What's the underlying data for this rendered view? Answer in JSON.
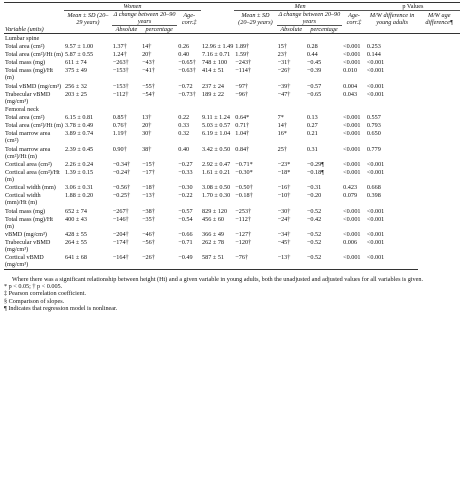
{
  "header": {
    "women": "Women",
    "men": "Men",
    "p_values": "p Values",
    "women_columns": [
      "Mean ± SD (20–29 years)",
      "Δ change between 20–90 years",
      "Age-corr.‡"
    ],
    "men_columns": [
      "Mean ± SD (20–29 years)",
      "Δ change between 20–90 years",
      "Age-corr.‡"
    ],
    "p_columns": [
      "M/W difference in young adults",
      "M/W age difference¶"
    ],
    "variable": "Variable (units)",
    "women_sub": [
      "Absolute",
      "percentage"
    ],
    "men_sub": [
      "Absolute",
      "percentage"
    ]
  },
  "sections": [
    {
      "title": "Lumbar spine",
      "rows": [
        [
          "Total area (cm²)",
          "9.57 ± 1.00",
          "1.37†",
          "14†",
          "0.26",
          "12.96 ± 1.49",
          "1.89†",
          "15†",
          "0.28",
          "<0.001",
          "0.253"
        ],
        [
          "Total area (cm²)/Ht (m)",
          "5.87 ± 0.55",
          "1.24†",
          "20†",
          "0.40",
          "7.16 ± 0.71",
          "1.59†",
          "23†",
          "0.44",
          "<0.001",
          "0.144"
        ],
        [
          "Total mass (mg)",
          "611 ± 74",
          "−263†",
          "−43†",
          "−0.65†",
          "748 ± 100",
          "−243†",
          "−31†",
          "−0.45",
          "<0.001",
          "<0.001"
        ],
        [
          "Total mass (mg)/Ht (m)",
          "375 ± 49",
          "−153†",
          "−41†",
          "−0.63†",
          "414 ± 51",
          "−114†",
          "−26†",
          "−0.39",
          "0.010",
          "<0.001"
        ],
        [
          "Total vBMD (mg/cm³)",
          "256 ± 32",
          "−153†",
          "−55†",
          "−0.72",
          "237 ± 24",
          "−97†",
          "−39†",
          "−0.57",
          "0.004",
          "<0.001"
        ],
        [
          "Trabecular vBMD (mg/cm³)",
          "203 ± 25",
          "−112†",
          "−54†",
          "−0.73†",
          "189 ± 22",
          "−96†",
          "−47†",
          "−0.65",
          "0.043",
          "<0.001"
        ]
      ]
    },
    {
      "title": "Femoral neck",
      "rows": [
        [
          "Total area (cm²)",
          "6.15 ± 0.81",
          "0.85†",
          "13†",
          "0.22",
          "9.11 ± 1.24",
          "0.64*",
          "7*",
          "0.13",
          "<0.001",
          "0.557"
        ],
        [
          "Total area (cm²)/Ht (m)",
          "3.78 ± 0.49",
          "0.76†",
          "20†",
          "0.33",
          "5.03 ± 0.57",
          "0.71†",
          "14†",
          "0.27",
          "<0.001",
          "0.793"
        ],
        [
          "Total marrow area (cm²)",
          "3.89 ± 0.74",
          "1.19†",
          "30†",
          "0.32",
          "6.19 ± 1.04",
          "1.04†",
          "16*",
          "0.21",
          "<0.001",
          "0.650"
        ],
        [
          "Total marrow area (cm²)/Ht (m)",
          "2.39 ± 0.45",
          "0.90†",
          "38†",
          "0.40",
          "3.42 ± 0.50",
          "0.84†",
          "25†",
          "0.31",
          "<0.001",
          "0.779"
        ],
        [
          "Cortical area (cm²)",
          "2.26 ± 0.24",
          "−0.34†",
          "−15†",
          "−0.27",
          "2.92 ± 0.47",
          "−0.71*",
          "−23*",
          "−0.29¶",
          "<0.001",
          "<0.001"
        ],
        [
          "Cortical area (cm²)/Ht (m)",
          "1.39 ± 0.15",
          "−0.24†",
          "−17†",
          "−0.33",
          "1.61 ± 0.21",
          "−0.30*",
          "−18*",
          "−0.18¶",
          "<0.001",
          "<0.001"
        ],
        [
          "Cortical width (mm)",
          "3.06 ± 0.31",
          "−0.56†",
          "−18†",
          "−0.30",
          "3.08 ± 0.50",
          "−0.50†",
          "−16†",
          "−0.31",
          "0.423",
          "0.668"
        ],
        [
          "Cortical width (mm)/Ht (m)",
          "1.88 ± 0.20",
          "−0.25†",
          "−13†",
          "−0.22",
          "1.70 ± 0.30",
          "−0.18†",
          "−10†",
          "−0.20",
          "0.079",
          "0.398"
        ],
        [
          "Total mass (mg)",
          "652 ± 74",
          "−267†",
          "−38†",
          "−0.57",
          "829 ± 120",
          "−253†",
          "−30†",
          "−0.52",
          "<0.001",
          "<0.001"
        ],
        [
          "Total mass (mg)/Ht (m)",
          "400 ± 43",
          "−146†",
          "−35†",
          "−0.54",
          "456 ± 60",
          "−112†",
          "−24†",
          "−0.42",
          "<0.001",
          "<0.001"
        ],
        [
          "vBMD (mg/cm³)",
          "428 ± 55",
          "−204†",
          "−46†",
          "−0.66",
          "366 ± 49",
          "−127†",
          "−34†",
          "−0.52",
          "<0.001",
          "<0.001"
        ],
        [
          "Trabecular vBMD (mg/cm³)",
          "264 ± 55",
          "−174†",
          "−56†",
          "−0.71",
          "262 ± 78",
          "−120†",
          "−45†",
          "−0.52",
          "0.006",
          "<0.001"
        ],
        [
          "Cortical vBMD (mg/cm³)",
          "641 ± 68",
          "−164†",
          "−26†",
          "−0.49",
          "587 ± 51",
          "−76†",
          "−13†",
          "−0.52",
          "<0.001",
          "<0.001"
        ]
      ]
    }
  ],
  "footnotes": [
    "Where there was a significant relationship between height (Ht) and a given variable in young adults, both the unadjusted and adjusted values for all variables is given.",
    "* p < 0.05; † p < 0.005.",
    "‡ Pearson correlation coefficient.",
    "§ Comparison of slopes.",
    "¶ Indicates that regression model is nonlinear."
  ]
}
